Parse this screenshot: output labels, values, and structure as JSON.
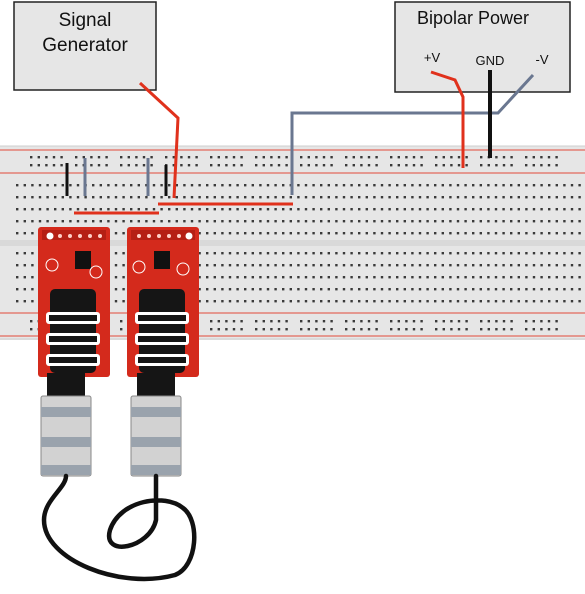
{
  "signal_generator": {
    "line1": "Signal",
    "line2": "Generator"
  },
  "bipolar_power": {
    "title": "Bipolar Power",
    "pos_label": "+V",
    "gnd_label": "GND",
    "neg_label": "-V"
  },
  "colors": {
    "wire_red": "#e0311c",
    "wire_black": "#111111",
    "wire_gray": "#6a7790",
    "board_red": "#d42a1c",
    "breadboard": "#e6e6e6",
    "rail_line": "#e14a3a",
    "box_fill": "#e6e6e6"
  },
  "icons": {
    "breadboard": "breadboard-icon",
    "breakout_board": "audio-jack-breakout-icon",
    "cable": "trrs-cable-icon"
  }
}
